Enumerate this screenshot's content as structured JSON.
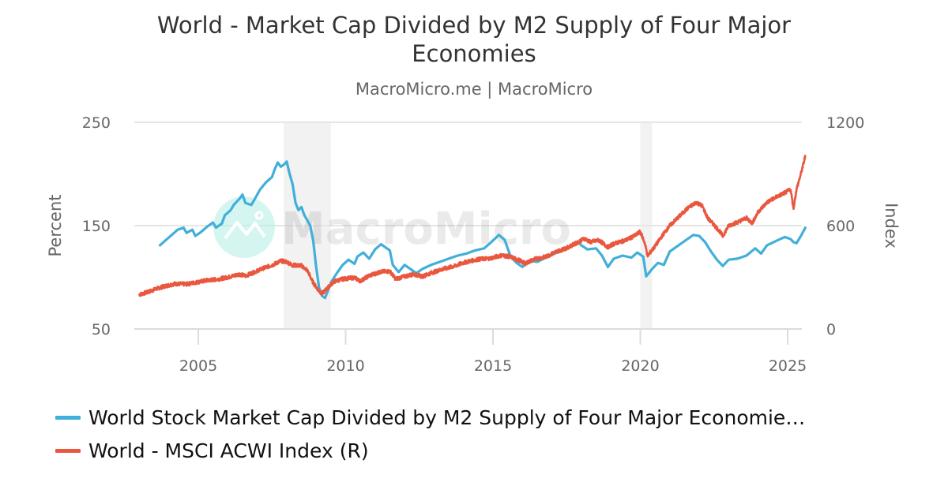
{
  "header": {
    "title": "World - Market Cap Divided by M2 Supply of Four Major Economies",
    "subtitle": "MacroMicro.me | MacroMicro"
  },
  "watermark": {
    "text": "MacroMicro",
    "icon": "macromicro-logo-icon"
  },
  "chart_data": {
    "type": "line",
    "title": "World - Market Cap Divided by M2 Supply of Four Major Economies",
    "subtitle": "MacroMicro.me | MacroMicro",
    "xlabel": "",
    "x_ticks": [
      "2005",
      "2010",
      "2015",
      "2020",
      "2025"
    ],
    "xlim": [
      2002.8,
      2025.8
    ],
    "y_left": {
      "label": "Percent",
      "ticks": [
        "50",
        "150",
        "250"
      ],
      "lim": [
        50,
        250
      ]
    },
    "y_right": {
      "label": "Index",
      "ticks": [
        "0",
        "600",
        "1200"
      ],
      "lim": [
        0,
        1200
      ]
    },
    "grid": true,
    "legend_position": "bottom-left",
    "shaded_periods": [
      {
        "start": 2007.9,
        "end": 2009.5
      },
      {
        "start": 2020.0,
        "end": 2020.4
      }
    ],
    "series": [
      {
        "name": "World Stock Market Cap Divided by M2 Supply of Four Major Economie…",
        "axis": "left",
        "color": "#41afd9",
        "points": [
          [
            2003.7,
            131
          ],
          [
            2003.9,
            136
          ],
          [
            2004.1,
            141
          ],
          [
            2004.3,
            146
          ],
          [
            2004.5,
            148
          ],
          [
            2004.6,
            143
          ],
          [
            2004.8,
            146
          ],
          [
            2004.9,
            140
          ],
          [
            2005.1,
            144
          ],
          [
            2005.3,
            149
          ],
          [
            2005.5,
            153
          ],
          [
            2005.6,
            148
          ],
          [
            2005.8,
            152
          ],
          [
            2005.9,
            160
          ],
          [
            2006.1,
            165
          ],
          [
            2006.2,
            170
          ],
          [
            2006.4,
            176
          ],
          [
            2006.5,
            180
          ],
          [
            2006.6,
            172
          ],
          [
            2006.8,
            170
          ],
          [
            2006.9,
            175
          ],
          [
            2007.1,
            185
          ],
          [
            2007.3,
            192
          ],
          [
            2007.5,
            197
          ],
          [
            2007.6,
            205
          ],
          [
            2007.7,
            211
          ],
          [
            2007.8,
            207
          ],
          [
            2007.9,
            209
          ],
          [
            2008.0,
            212
          ],
          [
            2008.1,
            200
          ],
          [
            2008.2,
            190
          ],
          [
            2008.3,
            172
          ],
          [
            2008.4,
            165
          ],
          [
            2008.5,
            168
          ],
          [
            2008.6,
            160
          ],
          [
            2008.8,
            150
          ],
          [
            2008.9,
            135
          ],
          [
            2009.0,
            110
          ],
          [
            2009.1,
            90
          ],
          [
            2009.2,
            82
          ],
          [
            2009.3,
            80
          ],
          [
            2009.4,
            87
          ],
          [
            2009.5,
            95
          ],
          [
            2009.7,
            104
          ],
          [
            2009.9,
            112
          ],
          [
            2010.1,
            117
          ],
          [
            2010.3,
            113
          ],
          [
            2010.4,
            120
          ],
          [
            2010.6,
            124
          ],
          [
            2010.8,
            118
          ],
          [
            2011.0,
            127
          ],
          [
            2011.2,
            132
          ],
          [
            2011.3,
            130
          ],
          [
            2011.5,
            126
          ],
          [
            2011.6,
            112
          ],
          [
            2011.8,
            105
          ],
          [
            2012.0,
            112
          ],
          [
            2012.2,
            108
          ],
          [
            2012.4,
            104
          ],
          [
            2012.6,
            108
          ],
          [
            2012.9,
            112
          ],
          [
            2013.2,
            115
          ],
          [
            2013.5,
            118
          ],
          [
            2013.8,
            121
          ],
          [
            2014.1,
            123
          ],
          [
            2014.4,
            126
          ],
          [
            2014.7,
            128
          ],
          [
            2014.9,
            133
          ],
          [
            2015.2,
            141
          ],
          [
            2015.4,
            136
          ],
          [
            2015.6,
            120
          ],
          [
            2015.8,
            114
          ],
          [
            2016.0,
            110
          ],
          [
            2016.2,
            116
          ],
          [
            2016.5,
            115
          ],
          [
            2016.8,
            119
          ],
          [
            2017.1,
            123
          ],
          [
            2017.5,
            128
          ],
          [
            2017.9,
            134
          ],
          [
            2018.0,
            131
          ],
          [
            2018.2,
            127
          ],
          [
            2018.5,
            128
          ],
          [
            2018.7,
            121
          ],
          [
            2018.9,
            110
          ],
          [
            2019.1,
            118
          ],
          [
            2019.4,
            121
          ],
          [
            2019.7,
            119
          ],
          [
            2019.9,
            124
          ],
          [
            2020.1,
            120
          ],
          [
            2020.2,
            101
          ],
          [
            2020.4,
            108
          ],
          [
            2020.6,
            114
          ],
          [
            2020.8,
            112
          ],
          [
            2021.0,
            125
          ],
          [
            2021.3,
            131
          ],
          [
            2021.6,
            137
          ],
          [
            2021.8,
            141
          ],
          [
            2022.0,
            140
          ],
          [
            2022.2,
            134
          ],
          [
            2022.4,
            125
          ],
          [
            2022.6,
            117
          ],
          [
            2022.8,
            111
          ],
          [
            2023.0,
            117
          ],
          [
            2023.3,
            118
          ],
          [
            2023.6,
            121
          ],
          [
            2023.9,
            128
          ],
          [
            2024.1,
            123
          ],
          [
            2024.3,
            131
          ],
          [
            2024.6,
            135
          ],
          [
            2024.9,
            139
          ],
          [
            2025.1,
            137
          ],
          [
            2025.2,
            134
          ],
          [
            2025.3,
            133
          ],
          [
            2025.45,
            140
          ],
          [
            2025.6,
            148
          ]
        ]
      },
      {
        "name": "World - MSCI ACWI Index (R)",
        "axis": "right",
        "color": "#e9573f",
        "points": [
          [
            2003.0,
            200
          ],
          [
            2003.3,
            215
          ],
          [
            2003.6,
            235
          ],
          [
            2003.9,
            250
          ],
          [
            2004.2,
            262
          ],
          [
            2004.6,
            260
          ],
          [
            2004.9,
            270
          ],
          [
            2005.3,
            282
          ],
          [
            2005.7,
            290
          ],
          [
            2006.0,
            300
          ],
          [
            2006.4,
            318
          ],
          [
            2006.6,
            308
          ],
          [
            2006.9,
            330
          ],
          [
            2007.2,
            352
          ],
          [
            2007.5,
            370
          ],
          [
            2007.8,
            395
          ],
          [
            2008.0,
            390
          ],
          [
            2008.2,
            370
          ],
          [
            2008.5,
            368
          ],
          [
            2008.7,
            340
          ],
          [
            2008.9,
            268
          ],
          [
            2009.1,
            220
          ],
          [
            2009.2,
            205
          ],
          [
            2009.4,
            240
          ],
          [
            2009.6,
            275
          ],
          [
            2009.9,
            290
          ],
          [
            2010.3,
            298
          ],
          [
            2010.5,
            278
          ],
          [
            2010.8,
            310
          ],
          [
            2011.2,
            332
          ],
          [
            2011.5,
            335
          ],
          [
            2011.7,
            290
          ],
          [
            2011.9,
            300
          ],
          [
            2012.3,
            318
          ],
          [
            2012.6,
            305
          ],
          [
            2012.9,
            325
          ],
          [
            2013.3,
            348
          ],
          [
            2013.7,
            365
          ],
          [
            2014.0,
            385
          ],
          [
            2014.5,
            405
          ],
          [
            2014.9,
            410
          ],
          [
            2015.3,
            428
          ],
          [
            2015.6,
            418
          ],
          [
            2015.9,
            398
          ],
          [
            2016.1,
            380
          ],
          [
            2016.4,
            405
          ],
          [
            2016.8,
            420
          ],
          [
            2017.1,
            445
          ],
          [
            2017.5,
            470
          ],
          [
            2017.9,
            505
          ],
          [
            2018.1,
            525
          ],
          [
            2018.3,
            505
          ],
          [
            2018.6,
            515
          ],
          [
            2018.9,
            475
          ],
          [
            2019.1,
            495
          ],
          [
            2019.5,
            515
          ],
          [
            2019.8,
            540
          ],
          [
            2020.0,
            565
          ],
          [
            2020.15,
            500
          ],
          [
            2020.25,
            425
          ],
          [
            2020.5,
            480
          ],
          [
            2020.8,
            555
          ],
          [
            2021.0,
            600
          ],
          [
            2021.3,
            650
          ],
          [
            2021.6,
            700
          ],
          [
            2021.9,
            735
          ],
          [
            2022.1,
            715
          ],
          [
            2022.3,
            640
          ],
          [
            2022.5,
            605
          ],
          [
            2022.7,
            565
          ],
          [
            2022.8,
            540
          ],
          [
            2023.0,
            600
          ],
          [
            2023.3,
            620
          ],
          [
            2023.6,
            645
          ],
          [
            2023.8,
            615
          ],
          [
            2024.0,
            680
          ],
          [
            2024.3,
            735
          ],
          [
            2024.6,
            765
          ],
          [
            2024.9,
            790
          ],
          [
            2025.1,
            810
          ],
          [
            2025.2,
            700
          ],
          [
            2025.3,
            810
          ],
          [
            2025.45,
            900
          ],
          [
            2025.6,
            1003
          ]
        ]
      }
    ]
  },
  "legend": {
    "items": [
      {
        "label": "World Stock Market Cap Divided by M2 Supply of Four Major Economie…",
        "color": "#41afd9"
      },
      {
        "label": "World - MSCI ACWI Index (R)",
        "color": "#e9573f"
      }
    ]
  }
}
